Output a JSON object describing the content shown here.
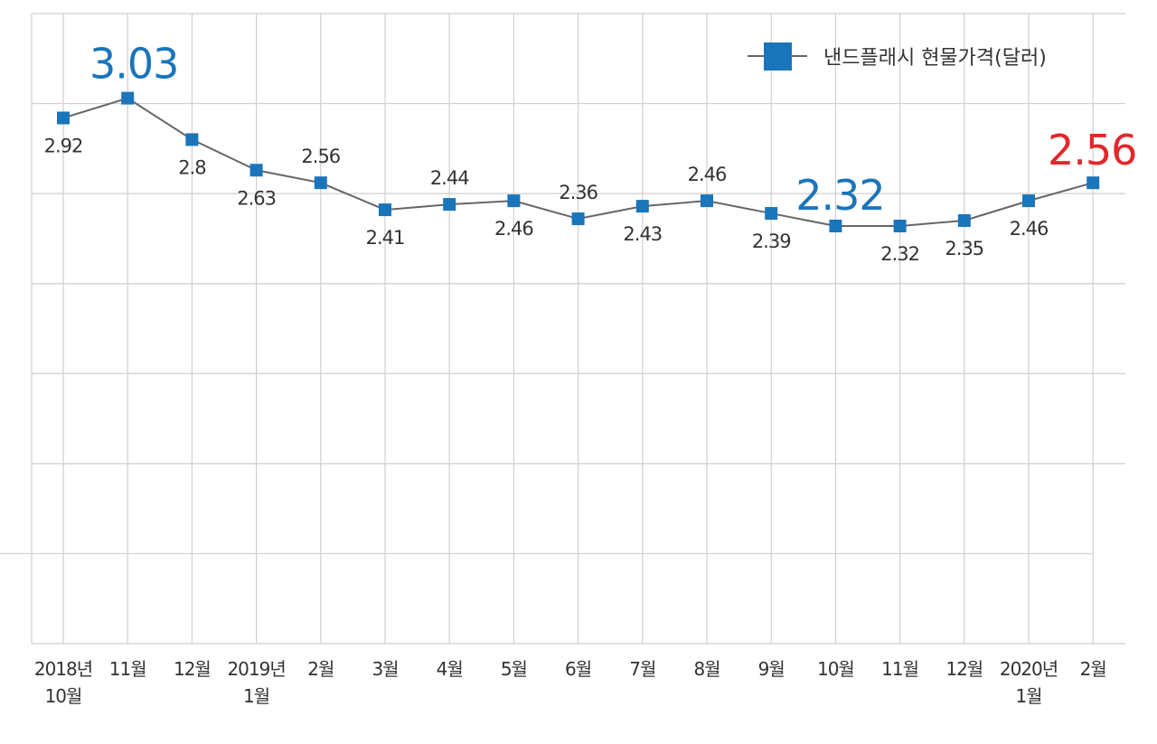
{
  "chart_data": {
    "type": "line",
    "title": "",
    "xlabel": "",
    "ylabel": "",
    "ylim": [
      0,
      3.5
    ],
    "y_grid_step": 0.5,
    "grid": true,
    "legend": {
      "placement": "top-right",
      "entries": [
        "낸드플래시 현물가격(달러)"
      ]
    },
    "categories": [
      [
        "2018년",
        "10월"
      ],
      [
        "11월"
      ],
      [
        "12월"
      ],
      [
        "2019년",
        "1월"
      ],
      [
        "2월"
      ],
      [
        "3월"
      ],
      [
        "4월"
      ],
      [
        "5월"
      ],
      [
        "6월"
      ],
      [
        "7월"
      ],
      [
        "8월"
      ],
      [
        "9월"
      ],
      [
        "10월"
      ],
      [
        "11월"
      ],
      [
        "12월"
      ],
      [
        "2020년",
        "1월"
      ],
      [
        "2월"
      ]
    ],
    "series": [
      {
        "name": "낸드플래시 현물가격(달러)",
        "values": [
          2.92,
          3.03,
          2.8,
          2.63,
          2.56,
          2.41,
          2.44,
          2.46,
          2.36,
          2.43,
          2.46,
          2.39,
          2.32,
          2.32,
          2.35,
          2.46,
          2.56
        ],
        "labels": [
          "2.92",
          "3.03",
          "2.8",
          "2.63",
          "2.56",
          "2.41",
          "2.44",
          "2.46",
          "2.36",
          "2.43",
          "2.46",
          "2.39",
          "2.32",
          "2.32",
          "2.35",
          "2.46",
          "2.56"
        ]
      }
    ],
    "label_positions": [
      "below",
      "big",
      "below",
      "below",
      "above",
      "below",
      "above",
      "below",
      "above",
      "below",
      "above",
      "below",
      "big",
      "below",
      "below",
      "below",
      "big"
    ],
    "highlight_labels": [
      {
        "index": 1,
        "text": "3.03",
        "color": "#1a75bb"
      },
      {
        "index": 12,
        "text": "2.32",
        "color": "#1a75bb"
      },
      {
        "index": 16,
        "text": "2.56",
        "color": "#e3262b"
      }
    ],
    "colors": {
      "line": "#666666",
      "marker": "#1a75bb",
      "grid": "#cfcfcf"
    }
  }
}
